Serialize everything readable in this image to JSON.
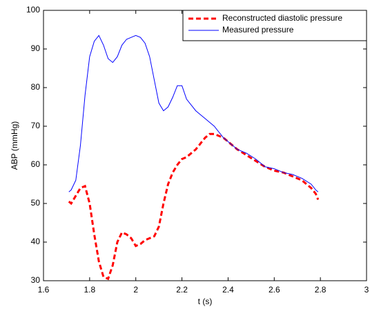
{
  "chart_data": {
    "type": "line",
    "xlabel": "t (s)",
    "ylabel": "ABP (mmHg)",
    "x": [
      1.71,
      1.72,
      1.74,
      1.76,
      1.78,
      1.8,
      1.82,
      1.84,
      1.86,
      1.88,
      1.9,
      1.92,
      1.94,
      1.96,
      1.98,
      2.0,
      2.02,
      2.04,
      2.06,
      2.08,
      2.1,
      2.12,
      2.14,
      2.16,
      2.18,
      2.2,
      2.22,
      2.24,
      2.26,
      2.28,
      2.3,
      2.32,
      2.34,
      2.36,
      2.38,
      2.4,
      2.44,
      2.48,
      2.52,
      2.56,
      2.6,
      2.64,
      2.68,
      2.72,
      2.76,
      2.78,
      2.79
    ],
    "series": [
      {
        "name": "Reconstructed diastolic pressure",
        "color": "#ff0000",
        "dashed": true,
        "values": [
          50.5,
          50,
          52,
          54,
          54.5,
          50,
          42,
          35,
          31,
          30.5,
          34,
          40,
          42.5,
          42,
          41,
          39,
          39.5,
          40.5,
          41,
          41.5,
          44,
          50,
          55,
          58,
          60,
          61.5,
          62,
          63,
          64,
          65.5,
          67,
          68,
          68,
          67.5,
          67,
          66,
          64,
          62.5,
          61,
          59.5,
          58.5,
          58,
          57,
          56,
          54,
          52.5,
          51
        ]
      },
      {
        "name": "Measured pressure",
        "color": "#0000ff",
        "dashed": false,
        "values": [
          53,
          53.5,
          56,
          65,
          78,
          88,
          92,
          93.5,
          91,
          87.5,
          86.5,
          88,
          91,
          92.5,
          93,
          93.5,
          93,
          91.5,
          88,
          82,
          76,
          74,
          75,
          77.5,
          80.5,
          80.5,
          77,
          75.5,
          74,
          73,
          72,
          71,
          70,
          68.5,
          67,
          66,
          64,
          63,
          61.5,
          59.5,
          59,
          58,
          57.5,
          56.5,
          55,
          53.5,
          53
        ]
      }
    ],
    "xlim": [
      1.6,
      3
    ],
    "xticks": [
      1.6,
      1.8,
      2,
      2.2,
      2.4,
      2.6,
      2.8,
      3
    ],
    "ylim": [
      30,
      100
    ],
    "yticks": [
      30,
      40,
      50,
      60,
      70,
      80,
      90,
      100
    ],
    "grid": false,
    "legend": "northeast"
  }
}
